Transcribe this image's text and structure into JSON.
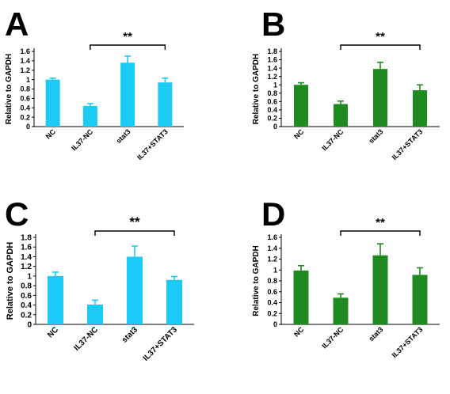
{
  "chart_data": [
    {
      "panel": "A",
      "type": "bar",
      "ylabel": "Relative to GAPDH",
      "categories": [
        "NC",
        "IL37-NC",
        "stat3",
        "IL37+STAT3"
      ],
      "values": [
        1.0,
        0.44,
        1.36,
        0.94
      ],
      "errors": [
        0.03,
        0.05,
        0.14,
        0.09
      ],
      "ylim": [
        0,
        1.6
      ],
      "yticks": [
        "0",
        "0.2",
        "0.4",
        "0.6",
        "0.8",
        "1",
        "1.2",
        "1.4",
        "1.6"
      ],
      "significance": "**",
      "color": "#1ccbf5"
    },
    {
      "panel": "B",
      "type": "bar",
      "ylabel": "Relative to GAPDH",
      "categories": [
        "NC",
        "IL37-NC",
        "stat3",
        "IL37+STAT3"
      ],
      "values": [
        1.0,
        0.54,
        1.38,
        0.87
      ],
      "errors": [
        0.05,
        0.07,
        0.16,
        0.13
      ],
      "ylim": [
        0,
        1.8
      ],
      "yticks": [
        "0",
        "0.2",
        "0.4",
        "0.6",
        "0.8",
        "1",
        "1.2",
        "1.4",
        "1.6",
        "1.8"
      ],
      "significance": "**",
      "color": "#1f8a1f"
    },
    {
      "panel": "C",
      "type": "bar",
      "ylabel": "Relative to GAPDH",
      "categories": [
        "NC",
        "IL37-NC",
        "stat3",
        "IL37+STAT3"
      ],
      "values": [
        1.0,
        0.41,
        1.4,
        0.92
      ],
      "errors": [
        0.08,
        0.09,
        0.22,
        0.07
      ],
      "ylim": [
        0,
        1.8
      ],
      "yticks": [
        "0",
        "0.2",
        "0.4",
        "0.6",
        "0.8",
        "1",
        "1.2",
        "1.4",
        "1.6",
        "1.8"
      ],
      "significance": "**",
      "color": "#1ccbf5"
    },
    {
      "panel": "D",
      "type": "bar",
      "ylabel": "Relative to GAPDH",
      "categories": [
        "NC",
        "IL37-NC",
        "stat3",
        "IL37+STAT3"
      ],
      "values": [
        0.99,
        0.49,
        1.27,
        0.91
      ],
      "errors": [
        0.09,
        0.07,
        0.21,
        0.13
      ],
      "ylim": [
        0,
        1.6
      ],
      "yticks": [
        "0",
        "0.2",
        "0.4",
        "0.6",
        "0.8",
        "1",
        "1.2",
        "1.4",
        "1.6"
      ],
      "significance": "**",
      "color": "#1f8a1f"
    }
  ]
}
